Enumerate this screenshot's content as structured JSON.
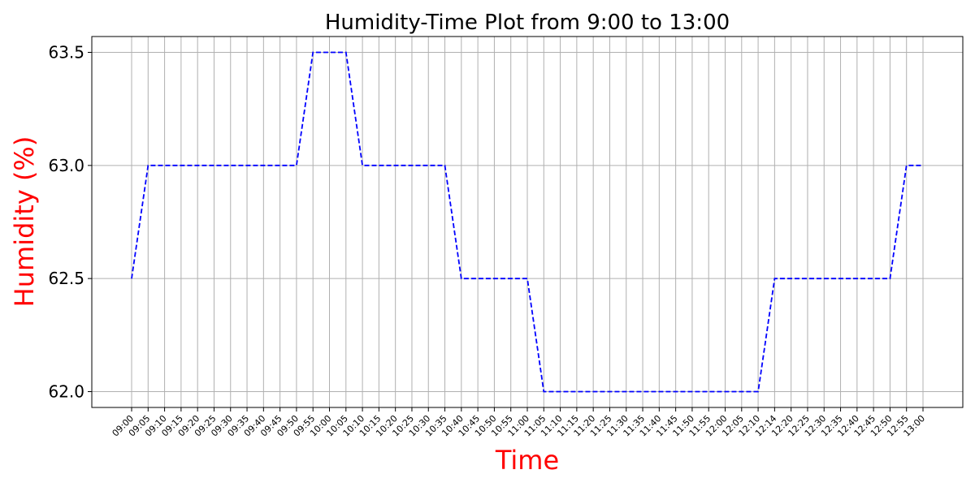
{
  "chart_data": {
    "type": "line",
    "title": "Humidity-Time Plot from 9:00 to 13:00",
    "xlabel": "Time",
    "ylabel": "Humidity (%)",
    "label_color": "#ff0000",
    "line_color": "#0000ff",
    "line_style": "dashed",
    "grid": true,
    "grid_color": "#b0b0b0",
    "ylim": [
      61.93,
      63.57
    ],
    "yticks": [
      62.0,
      62.5,
      63.0,
      63.5
    ],
    "ytick_labels": [
      "62.0",
      "62.5",
      "63.0",
      "63.5"
    ],
    "x": [
      "09:00",
      "09:05",
      "09:10",
      "09:15",
      "09:20",
      "09:25",
      "09:30",
      "09:35",
      "09:40",
      "09:45",
      "09:50",
      "09:55",
      "10:00",
      "10:05",
      "10:10",
      "10:15",
      "10:20",
      "10:25",
      "10:30",
      "10:35",
      "10:40",
      "10:45",
      "10:50",
      "10:55",
      "11:00",
      "11:05",
      "11:10",
      "11:15",
      "11:20",
      "11:25",
      "11:30",
      "11:35",
      "11:40",
      "11:45",
      "11:50",
      "11:55",
      "12:00",
      "12:05",
      "12:10",
      "12:14",
      "12:20",
      "12:25",
      "12:30",
      "12:35",
      "12:40",
      "12:45",
      "12:50",
      "12:55",
      "13:00"
    ],
    "series": [
      {
        "values": [
          62.5,
          63.0,
          63.0,
          63.0,
          63.0,
          63.0,
          63.0,
          63.0,
          63.0,
          63.0,
          63.0,
          63.5,
          63.5,
          63.5,
          63.0,
          63.0,
          63.0,
          63.0,
          63.0,
          63.0,
          62.5,
          62.5,
          62.5,
          62.5,
          62.5,
          62.0,
          62.0,
          62.0,
          62.0,
          62.0,
          62.0,
          62.0,
          62.0,
          62.0,
          62.0,
          62.0,
          62.0,
          62.0,
          62.0,
          62.5,
          62.5,
          62.5,
          62.5,
          62.5,
          62.5,
          62.5,
          62.5,
          63.0,
          63.0
        ]
      }
    ]
  }
}
